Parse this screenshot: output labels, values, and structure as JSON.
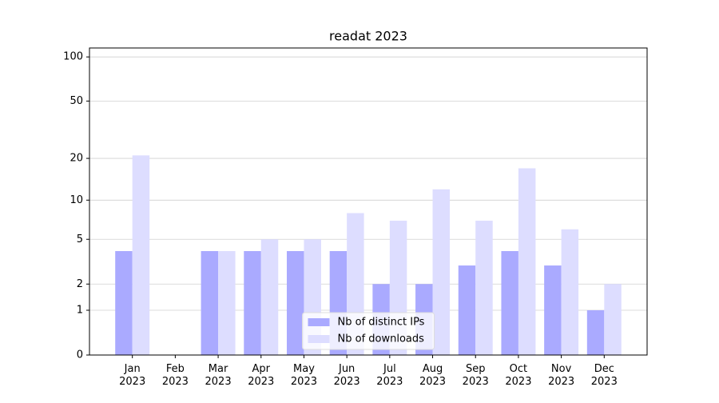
{
  "chart_data": {
    "type": "bar",
    "title": "readat 2023",
    "categories": [
      "Jan 2023",
      "Feb 2023",
      "Mar 2023",
      "Apr 2023",
      "May 2023",
      "Jun 2023",
      "Jul 2023",
      "Aug 2023",
      "Sep 2023",
      "Oct 2023",
      "Nov 2023",
      "Dec 2023"
    ],
    "series": [
      {
        "name": "Nb of distinct IPs",
        "color": "#aaaaff",
        "values": [
          4,
          0,
          4,
          4,
          4,
          4,
          2,
          2,
          3,
          4,
          3,
          1
        ]
      },
      {
        "name": "Nb of downloads",
        "color": "#ddddff",
        "values": [
          21,
          0,
          4,
          5,
          5,
          8,
          7,
          12,
          7,
          17,
          6,
          2
        ]
      }
    ],
    "yscale": "symlog",
    "ylim": [
      0,
      115
    ],
    "yticks": [
      0,
      1,
      2,
      5,
      10,
      20,
      50,
      100
    ],
    "grid": true,
    "legend": "lower center"
  }
}
